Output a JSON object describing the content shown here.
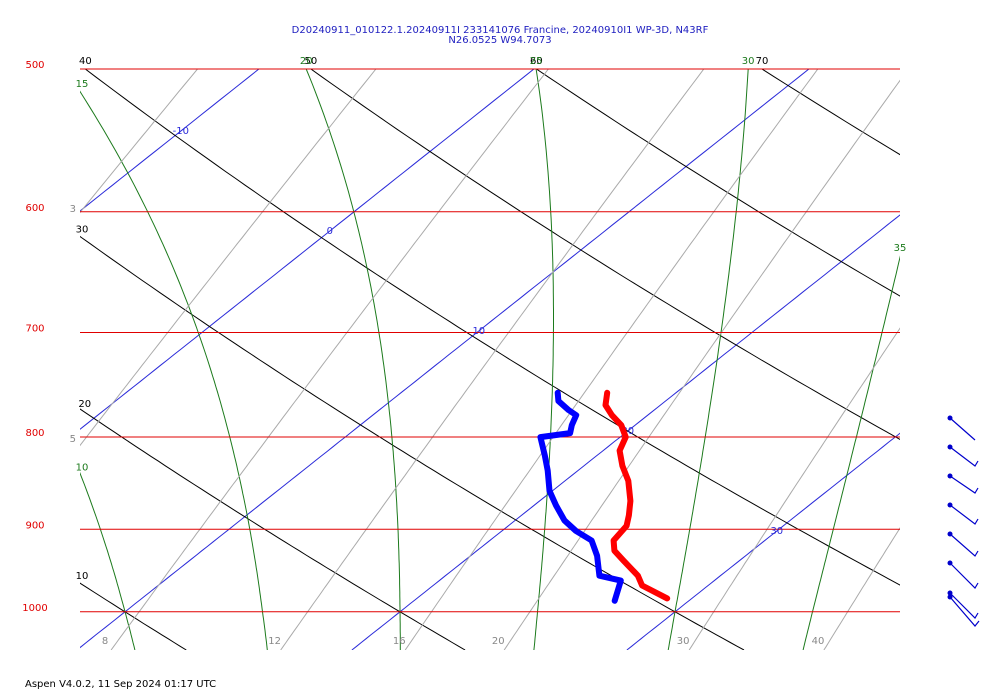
{
  "chart_data": {
    "type": "skewt",
    "title": "D20240911_010122.1.20240911I 233141076 Francine, 20240910I1 WP-3D, N43RF",
    "subtitle": "N26.0525 W94.7073",
    "ylim": [
      1050,
      500
    ],
    "log_y": true,
    "yticks": [
      500,
      600,
      700,
      800,
      900,
      1000
    ],
    "isotherms": [
      -10,
      0,
      10,
      20,
      30
    ],
    "dry_adiabats": [
      10,
      20,
      30,
      40,
      50,
      60,
      70
    ],
    "moist_adiabats": [
      10,
      15,
      20,
      25,
      30,
      35
    ],
    "mixing_ratios": [
      3,
      5,
      8,
      12,
      16,
      20,
      30,
      40
    ],
    "series": [
      {
        "color": "#ff0000",
        "pressure": [
          756,
          768,
          778,
          788,
          800,
          814,
          830,
          846,
          868,
          884,
          896,
          913,
          925,
          937,
          955,
          967,
          983
        ],
        "temperature": [
          17.5,
          18.0,
          18.7,
          19.5,
          20.2,
          20.6,
          21.4,
          22.3,
          23.3,
          23.9,
          24.3,
          24.5,
          25.0,
          25.8,
          27.0,
          27.6,
          29.1
        ]
      },
      {
        "color": "#0000ff",
        "pressure": [
          756,
          764,
          773,
          778,
          788,
          796,
          800,
          819,
          835,
          857,
          873,
          890,
          902,
          913,
          931,
          955,
          961,
          986
        ],
        "temperature": [
          15.7,
          16.1,
          16.9,
          17.4,
          17.7,
          18.0,
          17.1,
          18.1,
          18.9,
          19.9,
          20.8,
          21.8,
          22.7,
          23.7,
          24.6,
          25.6,
          26.6,
          27.3
        ]
      }
    ]
  },
  "footer": "Aspen V4.0.2, 11 Sep 2024 01:17 UTC"
}
